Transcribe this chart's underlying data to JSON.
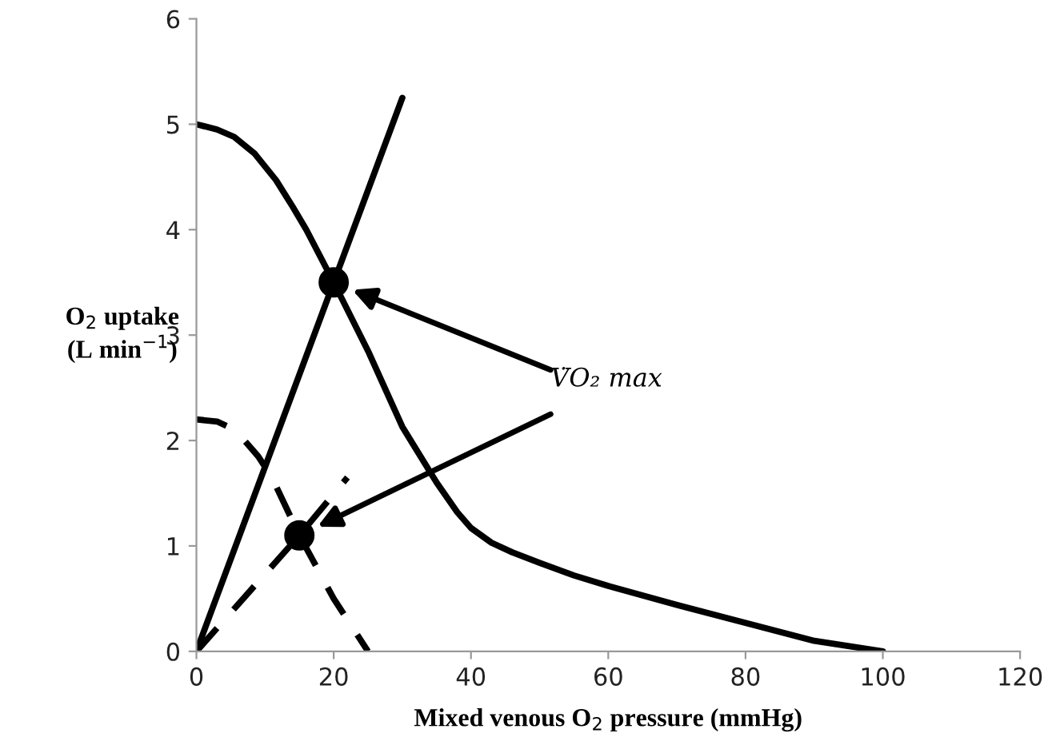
{
  "chart_data": {
    "type": "line",
    "xlabel": "Mixed venous O$_{2}$ pressure (mmHg)",
    "ylabel": "O$_{2}$ uptake\n(L min$^{−1}$)",
    "xlim": [
      0,
      120
    ],
    "xticks": [
      0,
      20,
      40,
      60,
      80,
      100,
      120
    ],
    "ylim": [
      0,
      6
    ],
    "yticks": [
      0,
      1,
      2,
      3,
      4,
      5,
      6
    ],
    "grid": false,
    "legend": false,
    "series": [
      {
        "line_style": "solid",
        "color": "#000000",
        "x": [
          0,
          3,
          5.5,
          8.5,
          11.6,
          14,
          16,
          20,
          25,
          30,
          35,
          38,
          40,
          43,
          46,
          50,
          55,
          60,
          70,
          80,
          90,
          100
        ],
        "values": [
          5,
          4.95,
          4.88,
          4.72,
          4.47,
          4.22,
          4.0,
          3.5,
          2.85,
          2.13,
          1.6,
          1.32,
          1.17,
          1.03,
          0.94,
          0.84,
          0.72,
          0.62,
          0.44,
          0.27,
          0.1,
          0
        ]
      },
      {
        "line_style": "solid",
        "color": "#000000",
        "x": [
          0,
          30
        ],
        "values": [
          0,
          5.25
        ]
      },
      {
        "line_style": "dashed",
        "color": "#000000",
        "x": [
          0,
          3,
          5,
          7,
          9,
          11,
          15,
          20,
          25
        ],
        "values": [
          2.2,
          2.18,
          2.12,
          2.0,
          1.85,
          1.65,
          1.1,
          0.5,
          0
        ]
      },
      {
        "line_style": "dashed",
        "color": "#000000",
        "x": [
          0,
          15,
          22
        ],
        "values": [
          0,
          1.1,
          1.65
        ]
      },
      {
        "type": "scatter",
        "marker": "circle",
        "color": "#000000",
        "x": [
          20,
          15
        ],
        "values": [
          3.5,
          1.1
        ]
      }
    ],
    "annotations": [
      "V̇O₂ max"
    ]
  }
}
